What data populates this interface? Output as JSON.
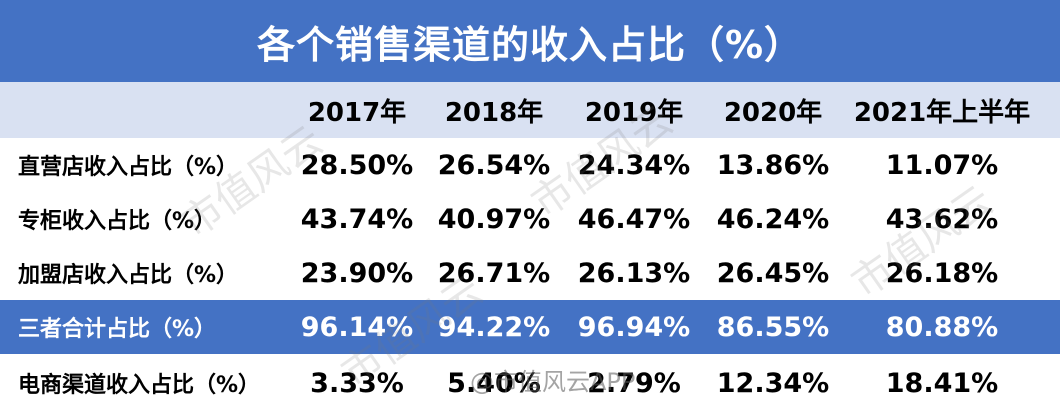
{
  "title": "各个销售渠道的收入占比（%）",
  "columns": [
    "2017年",
    "2018年",
    "2019年",
    "2020年",
    "2021年上半年"
  ],
  "rows": [
    {
      "label": "直营店收入占比（%）",
      "values": [
        "28.50%",
        "26.54%",
        "24.34%",
        "13.86%",
        "11.07%"
      ]
    },
    {
      "label": "专柜收入占比（%）",
      "values": [
        "43.74%",
        "40.97%",
        "46.47%",
        "46.24%",
        "43.62%"
      ]
    },
    {
      "label": "加盟店收入占比（%）",
      "values": [
        "23.90%",
        "26.71%",
        "26.13%",
        "26.45%",
        "26.18%"
      ]
    },
    {
      "label": "三者合计占比（%）",
      "values": [
        "96.14%",
        "94.22%",
        "96.94%",
        "86.55%",
        "80.88%"
      ]
    },
    {
      "label": "电商渠道收入占比（%）",
      "values": [
        "3.33%",
        "5.40%",
        "2.79%",
        "12.34%",
        "18.41%"
      ]
    }
  ],
  "watermark": "市值风云",
  "watermark_center": "@市值风云APP",
  "colors": {
    "title_bg": "#4472c4",
    "header_bg": "#d9e1f2",
    "highlight_row_bg": "#4472c4"
  }
}
